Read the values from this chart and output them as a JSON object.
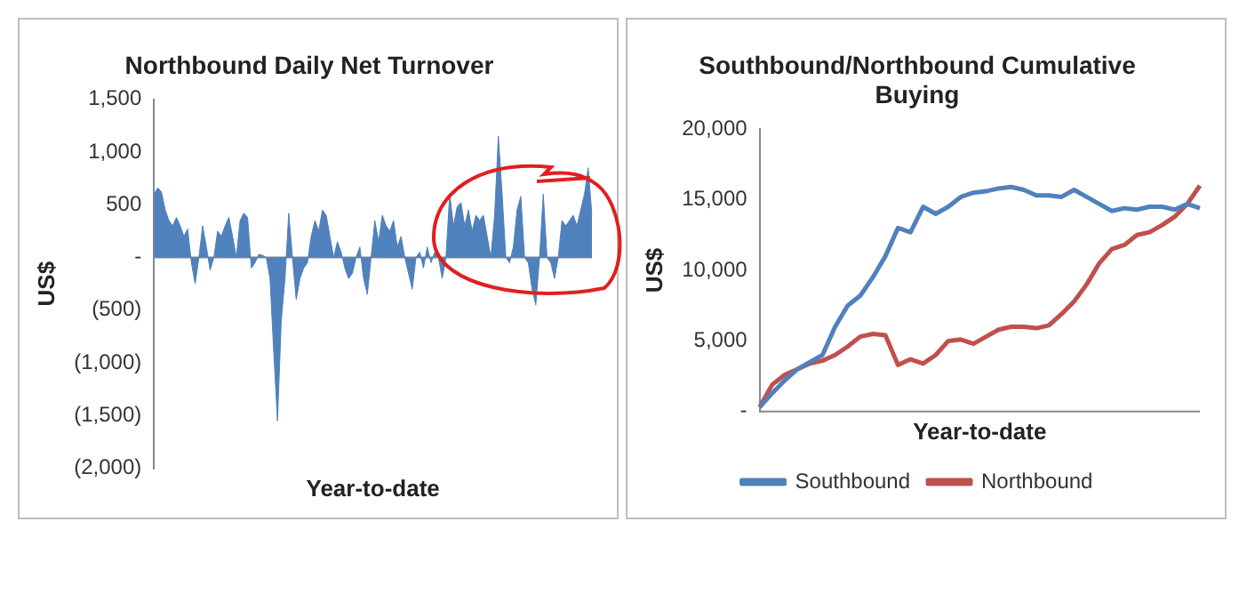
{
  "chart_data": [
    {
      "type": "area",
      "title": "Northbound Daily Net Turnover",
      "xlabel": "Year-to-date",
      "ylabel": "US$",
      "color": "#4f81bd",
      "legend": false,
      "marker": "none",
      "tick_labels": "y",
      "categories": [
        null,
        null,
        null,
        null,
        null,
        null,
        null,
        null,
        null,
        null,
        null,
        null,
        null,
        null,
        null,
        null,
        null,
        null,
        null,
        null,
        null,
        null,
        null,
        null,
        null,
        null,
        null,
        null,
        null,
        null,
        null,
        null,
        null,
        null,
        null,
        null,
        null,
        null,
        null,
        null,
        null,
        null,
        null,
        null,
        null,
        null,
        null,
        null,
        null,
        null,
        null,
        null,
        null,
        null,
        null,
        null,
        null,
        null,
        null,
        null,
        null,
        null,
        null,
        null,
        null,
        null,
        null,
        null,
        null,
        null,
        null,
        null,
        null,
        null,
        null,
        null,
        null,
        null,
        null,
        null,
        null,
        null,
        null,
        null,
        null,
        null,
        null,
        null,
        null,
        null,
        null,
        null,
        null,
        null,
        null,
        null,
        null,
        null,
        null,
        null,
        null,
        null,
        null,
        null,
        null,
        null,
        null,
        null,
        null,
        null,
        null,
        null,
        null,
        null,
        null,
        null,
        null,
        null
      ],
      "values": [
        600,
        660,
        620,
        450,
        350,
        300,
        380,
        300,
        200,
        270,
        -50,
        -250,
        0,
        300,
        100,
        -120,
        0,
        250,
        200,
        300,
        380,
        200,
        0,
        350,
        420,
        380,
        -100,
        -50,
        30,
        20,
        0,
        -200,
        -900,
        -1550,
        -600,
        -200,
        420,
        0,
        -400,
        -200,
        -100,
        -50,
        200,
        350,
        250,
        450,
        400,
        200,
        0,
        150,
        50,
        -100,
        -200,
        -150,
        0,
        100,
        -200,
        -350,
        0,
        350,
        150,
        400,
        300,
        250,
        350,
        100,
        200,
        0,
        -150,
        -300,
        0,
        50,
        -100,
        100,
        -50,
        50,
        0,
        -200,
        0,
        600,
        300,
        480,
        520,
        300,
        450,
        250,
        400,
        350,
        400,
        200,
        0,
        400,
        1150,
        600,
        0,
        -50,
        100,
        450,
        580,
        0,
        -50,
        -300,
        -450,
        0,
        600,
        0,
        -50,
        -200,
        0,
        350,
        300,
        350,
        400,
        300,
        450,
        600,
        850,
        400
      ],
      "ylim": [
        -2000,
        1500
      ],
      "yticks": [
        {
          "value": 1500,
          "label": "1,500"
        },
        {
          "value": 1000,
          "label": "1,000"
        },
        {
          "value": 500,
          "label": "500"
        },
        {
          "value": 0,
          "label": "-"
        },
        {
          "value": -500,
          "label": "(500)"
        },
        {
          "value": -1000,
          "label": "(1,000)"
        },
        {
          "value": -1500,
          "label": "(1,500)"
        },
        {
          "value": -2000,
          "label": "(2,000)"
        }
      ]
    },
    {
      "type": "line",
      "title": "Southbound/Northbound Cumulative Buying",
      "xlabel": "Year-to-date",
      "ylabel": "US$",
      "legend": "bottom",
      "marker": "none",
      "tick_labels": "y",
      "categories": [
        null,
        null,
        null,
        null,
        null,
        null,
        null,
        null,
        null,
        null,
        null,
        null,
        null,
        null,
        null,
        null,
        null,
        null,
        null,
        null,
        null,
        null,
        null,
        null,
        null,
        null,
        null,
        null,
        null,
        null,
        null,
        null,
        null,
        null,
        null,
        null
      ],
      "series": [
        {
          "name": "Southbound",
          "color": "#4f81bd",
          "values": [
            300,
            1300,
            2200,
            3000,
            3500,
            4000,
            6000,
            7500,
            8200,
            9500,
            11000,
            13000,
            12700,
            14500,
            14000,
            14500,
            15200,
            15500,
            15600,
            15800,
            15900,
            15700,
            15300,
            15300,
            15200,
            15700,
            15200,
            14700,
            14200,
            14400,
            14300,
            14500,
            14500,
            14300,
            14700,
            14400
          ]
        },
        {
          "name": "Northbound",
          "color": "#c0504d",
          "values": [
            300,
            1900,
            2600,
            3000,
            3400,
            3600,
            4000,
            4600,
            5300,
            5500,
            5400,
            3300,
            3700,
            3400,
            4000,
            5000,
            5100,
            4800,
            5300,
            5800,
            6000,
            6000,
            5900,
            6100,
            6900,
            7800,
            9000,
            10500,
            11500,
            11800,
            12500,
            12700,
            13200,
            13800,
            14700,
            16000
          ]
        }
      ],
      "ylim": [
        0,
        20000
      ],
      "yticks": [
        {
          "value": 20000,
          "label": "20,000"
        },
        {
          "value": 15000,
          "label": "15,000"
        },
        {
          "value": 10000,
          "label": "10,000"
        },
        {
          "value": 5000,
          "label": "5,000"
        },
        {
          "value": 0,
          "label": "-"
        }
      ]
    }
  ]
}
